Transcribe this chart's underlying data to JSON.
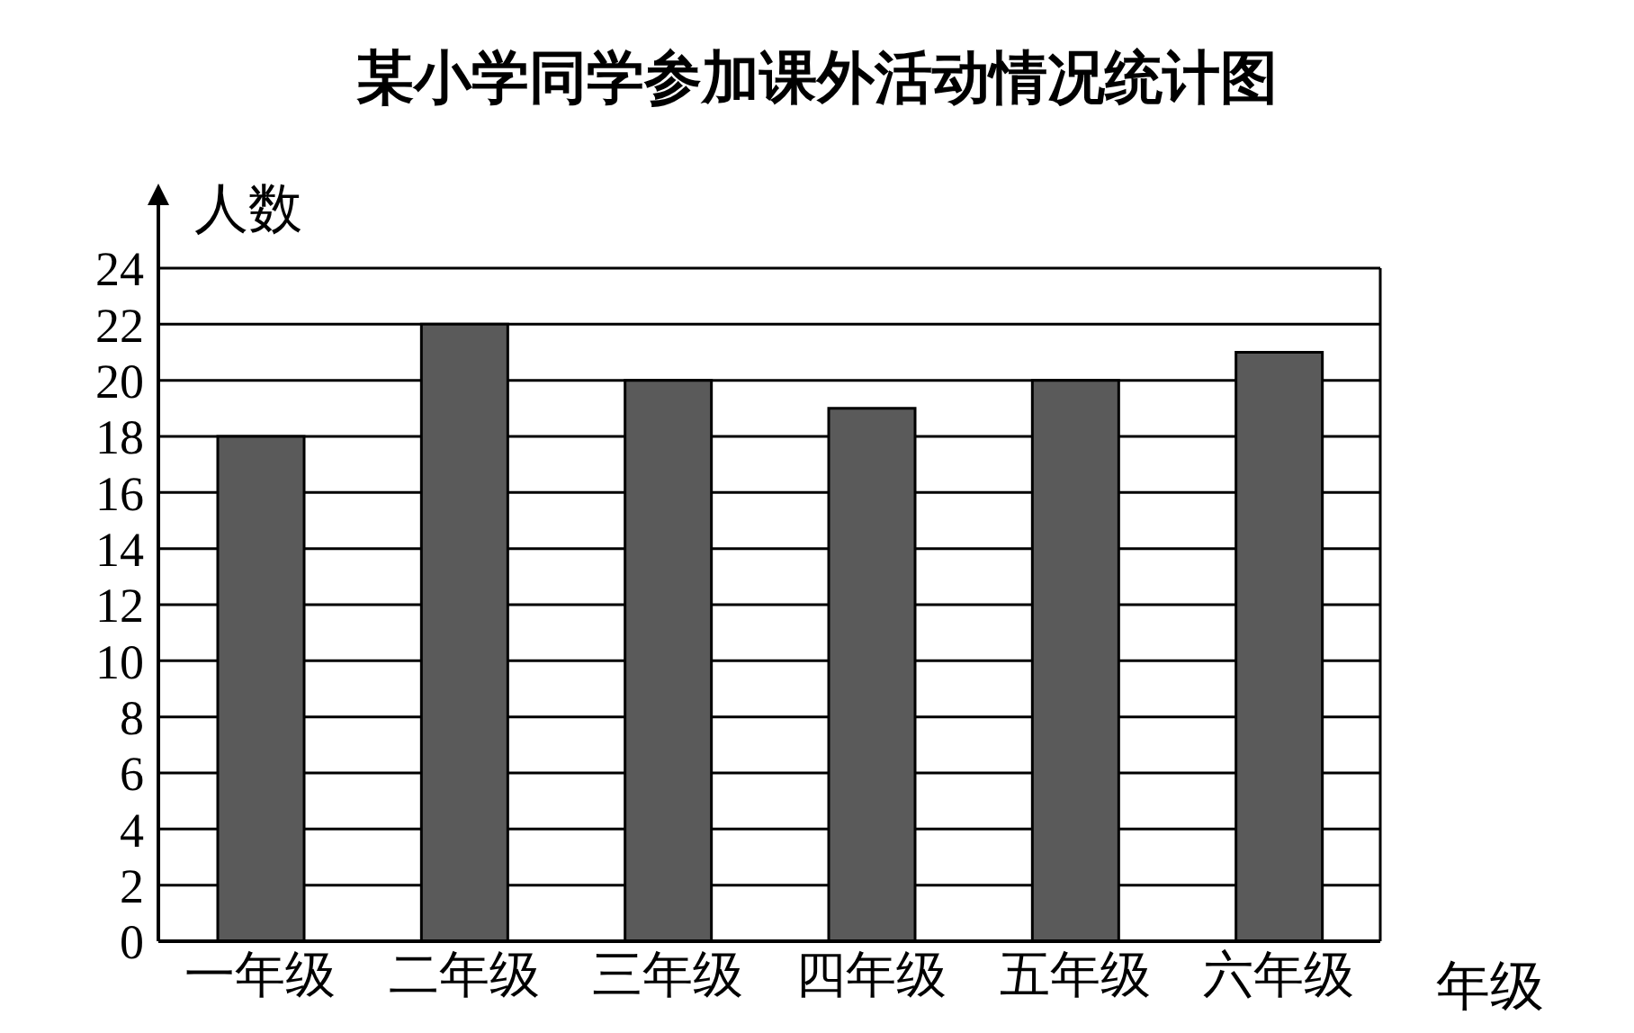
{
  "chart_data": {
    "type": "bar",
    "title": "某小学同学参加课外活动情况统计图",
    "xlabel": "年级",
    "ylabel": "人数",
    "categories": [
      "一年级",
      "二年级",
      "三年级",
      "四年级",
      "五年级",
      "六年级"
    ],
    "values": [
      18,
      22,
      20,
      19,
      20,
      21
    ],
    "color": "#5a5a5a",
    "ylim": [
      0,
      24
    ],
    "yticks": [
      0,
      2,
      4,
      6,
      8,
      10,
      12,
      14,
      16,
      18,
      20,
      22,
      24
    ],
    "grid": "y"
  }
}
